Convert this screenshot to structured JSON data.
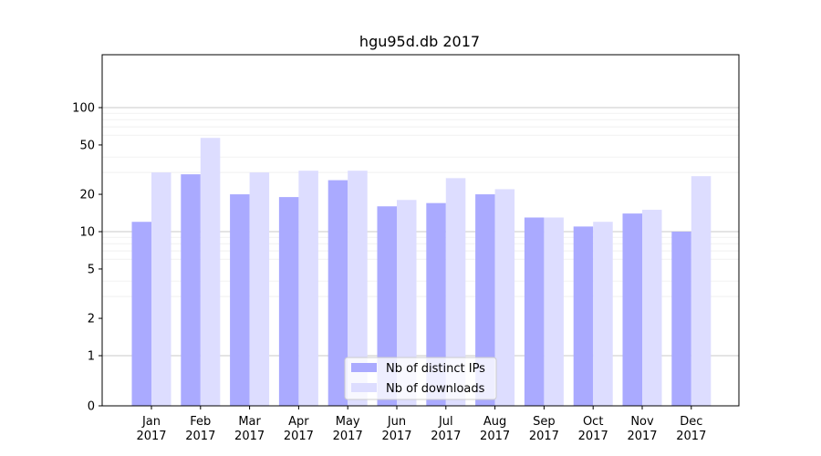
{
  "chart_data": {
    "type": "bar",
    "title": "hgu95d.db 2017",
    "xlabel": "",
    "ylabel": "",
    "y_scale": "symlog",
    "y_ticks": [
      0,
      1,
      2,
      5,
      10,
      20,
      50,
      100
    ],
    "y_tick_labels": [
      "0",
      "1",
      "2",
      "5",
      "10",
      "20",
      "50",
      "100"
    ],
    "ylim": [
      0,
      120
    ],
    "grid": true,
    "legend_position": "bottom-center",
    "categories": [
      "Jan",
      "Feb",
      "Mar",
      "Apr",
      "May",
      "Jun",
      "Jul",
      "Aug",
      "Sep",
      "Oct",
      "Nov",
      "Dec"
    ],
    "category_sublabels": [
      "2017",
      "2017",
      "2017",
      "2017",
      "2017",
      "2017",
      "2017",
      "2017",
      "2017",
      "2017",
      "2017",
      "2017"
    ],
    "series": [
      {
        "name": "Nb of distinct IPs",
        "color": "#aaaaff",
        "values": [
          12,
          29,
          20,
          19,
          26,
          16,
          17,
          20,
          13,
          11,
          14,
          10
        ]
      },
      {
        "name": "Nb of downloads",
        "color": "#ddddff",
        "values": [
          30,
          57,
          30,
          31,
          31,
          18,
          27,
          22,
          13,
          12,
          15,
          28
        ]
      }
    ]
  }
}
